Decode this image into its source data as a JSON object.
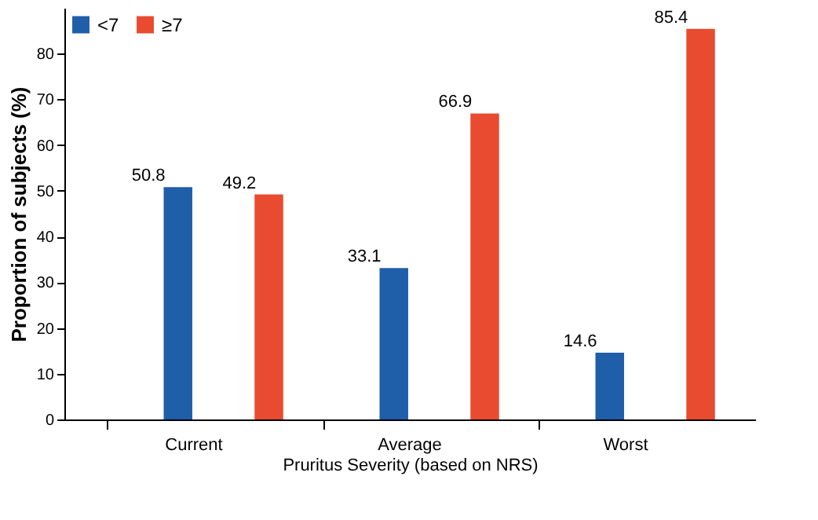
{
  "chart_data": {
    "type": "bar",
    "xlabel": "Pruritus Severity (based on NRS)",
    "ylabel": "Proportion of subjects (%)",
    "categories": [
      "Current",
      "Average",
      "Worst"
    ],
    "series": [
      {
        "name": "<7",
        "color": "#1f5ea8",
        "values": [
          50.8,
          33.1,
          14.6
        ]
      },
      {
        "name": "≥7",
        "color": "#e84b2f",
        "values": [
          49.2,
          66.9,
          85.4
        ]
      }
    ],
    "ylim": [
      0,
      90
    ],
    "yticks": [
      0,
      10,
      20,
      30,
      40,
      50,
      60,
      70,
      80
    ],
    "data_labels": true,
    "legend": "top left",
    "grid": false
  }
}
